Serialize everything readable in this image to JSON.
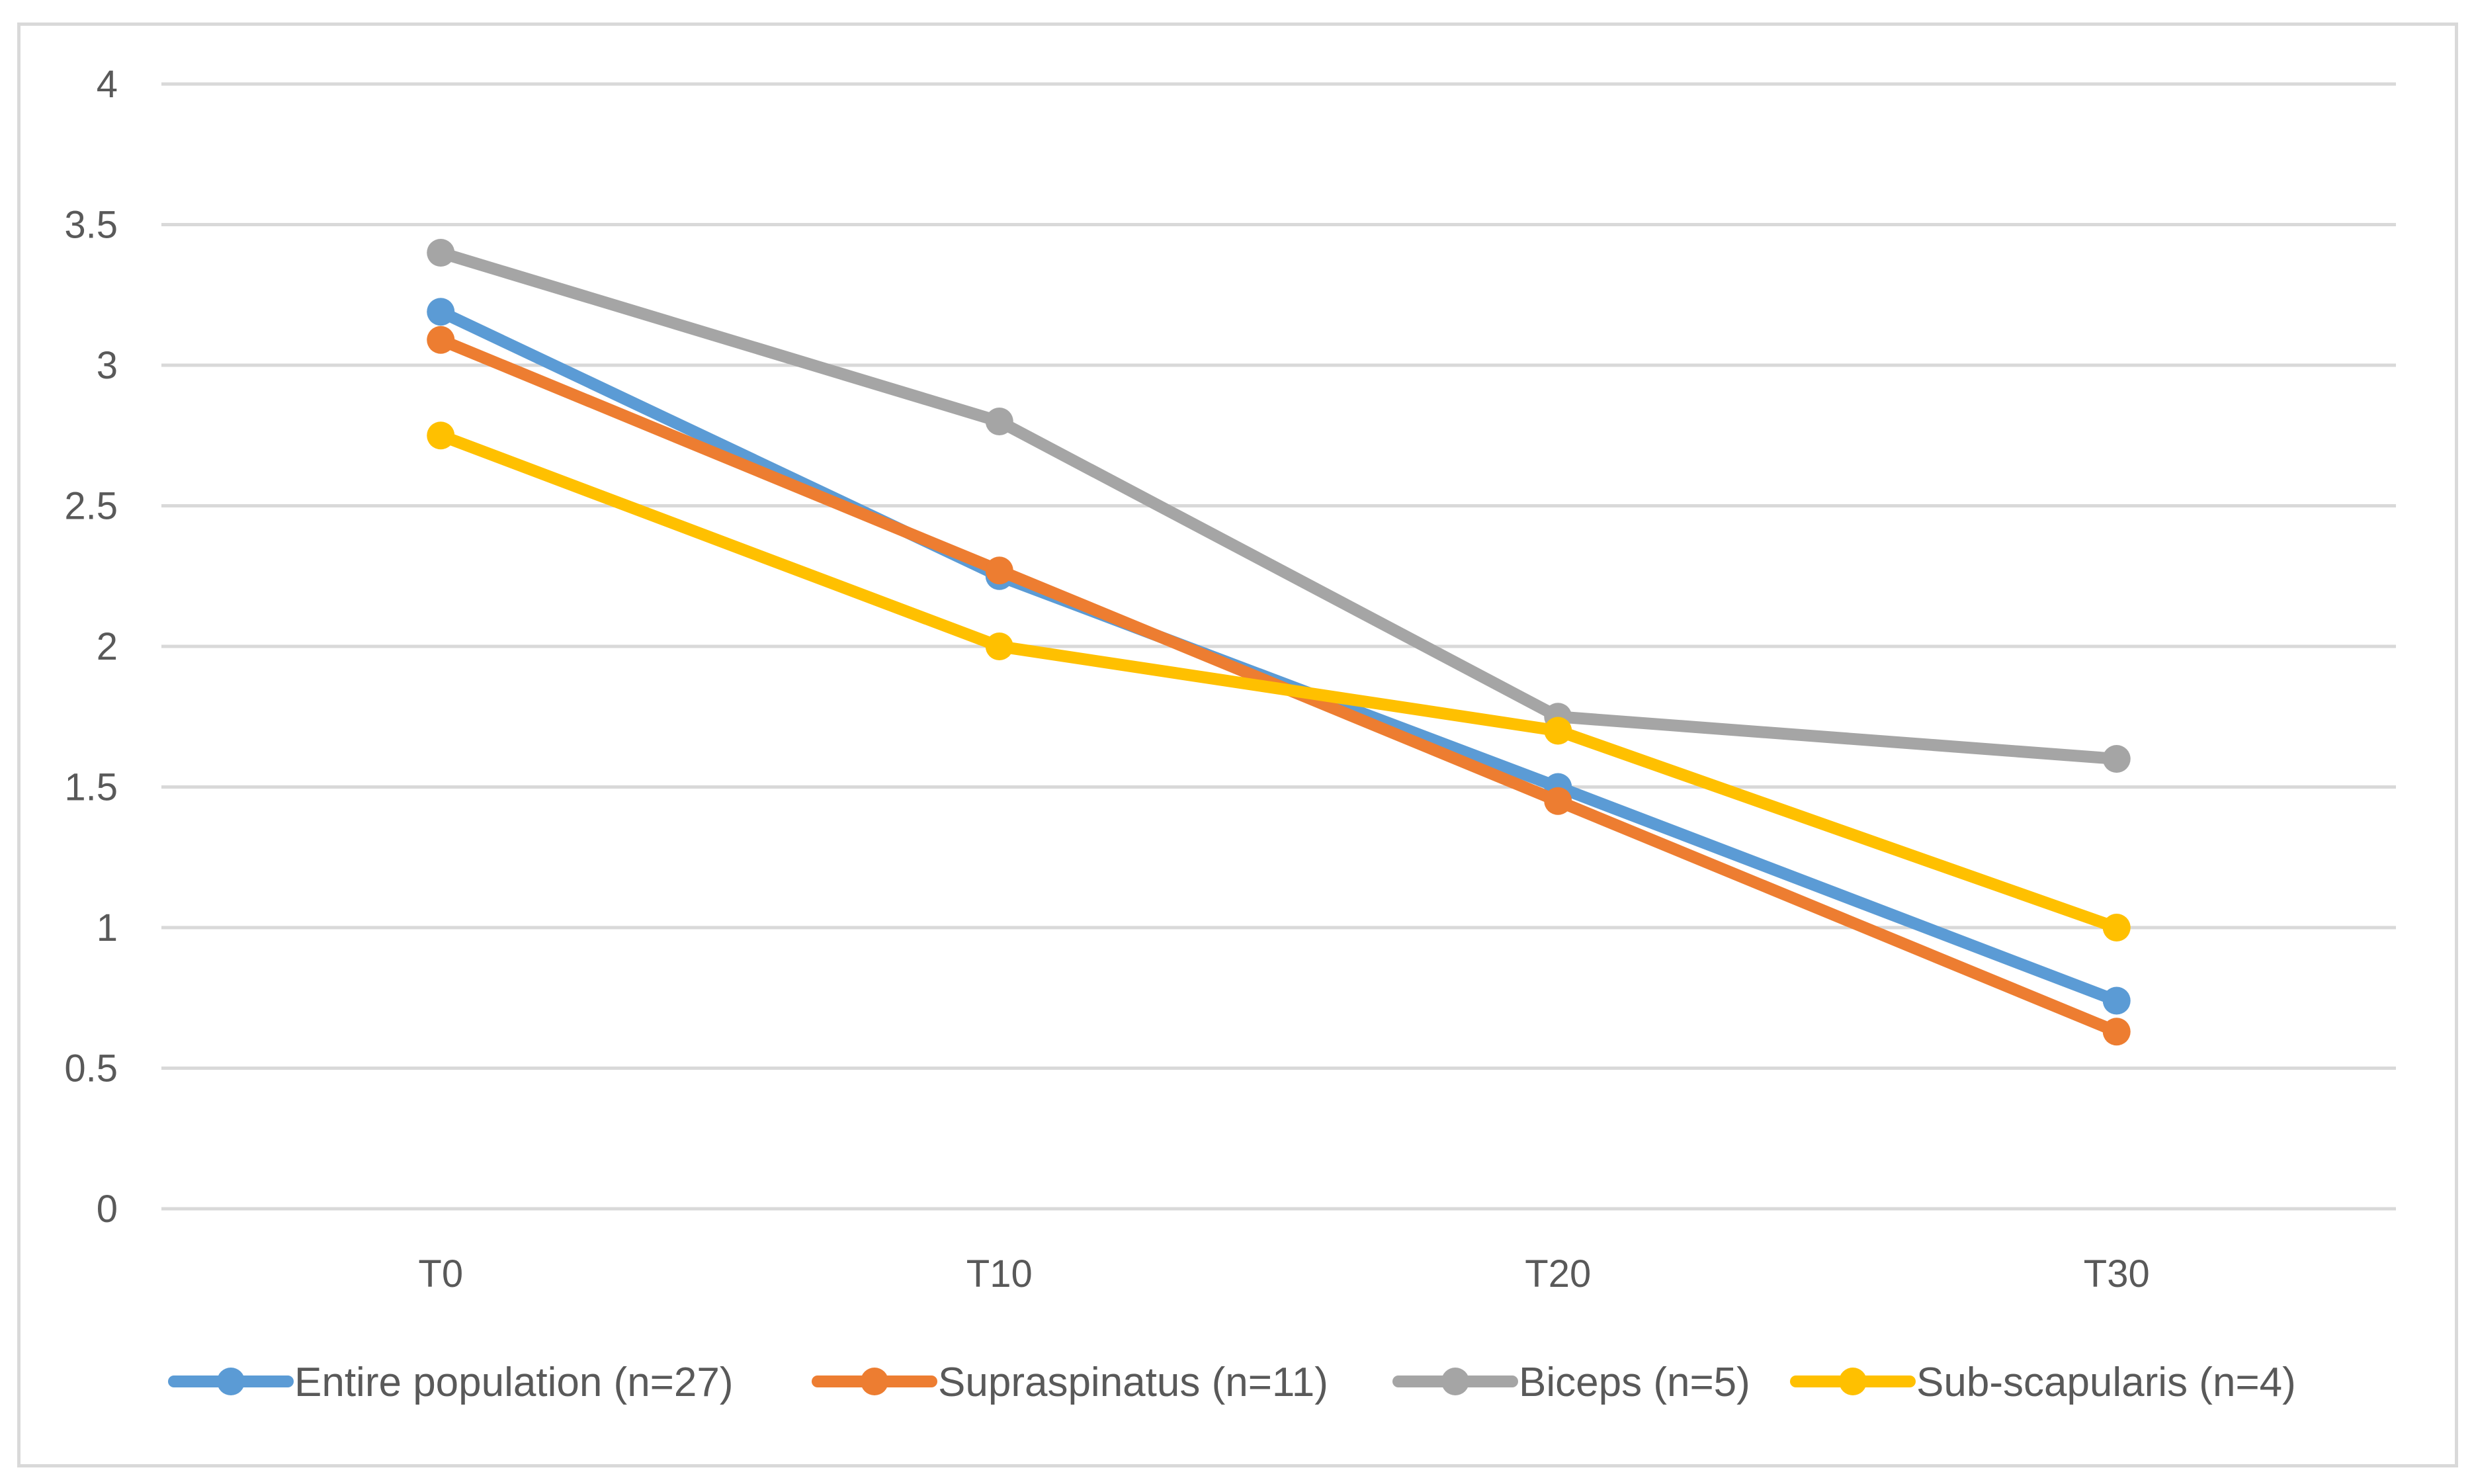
{
  "chart_data": {
    "type": "line",
    "title": "",
    "xlabel": "",
    "ylabel": "",
    "categories": [
      "T0",
      "T10",
      "T20",
      "T30"
    ],
    "ylim": [
      0,
      4
    ],
    "y_ticks": [
      "0",
      "0.5",
      "1",
      "1.5",
      "2",
      "2.5",
      "3",
      "3.5",
      "4"
    ],
    "grid": true,
    "legend_position": "bottom",
    "series": [
      {
        "name": "Entire population (n=27)",
        "color": "#5b9bd5",
        "values": [
          3.19,
          2.25,
          1.5,
          0.74
        ]
      },
      {
        "name": "Supraspinatus (n=11)",
        "color": "#ed7d31",
        "values": [
          3.09,
          2.27,
          1.45,
          0.63
        ]
      },
      {
        "name": "Biceps (n=5)",
        "color": "#a5a5a5",
        "values": [
          3.4,
          2.8,
          1.75,
          1.6
        ]
      },
      {
        "name": "Sub-scapularis (n=4)",
        "color": "#ffc000",
        "values": [
          2.75,
          2.0,
          1.7,
          1.0
        ]
      }
    ]
  }
}
